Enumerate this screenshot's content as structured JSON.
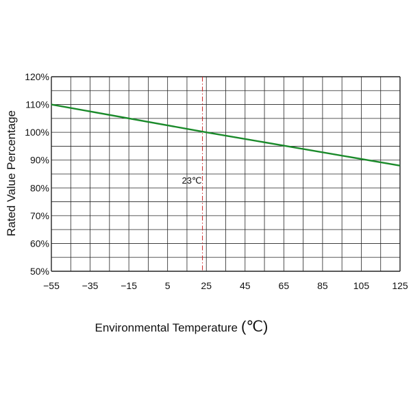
{
  "chart_data": {
    "type": "line",
    "xlabel": "Environmental Temperature",
    "xlabel_unit": "(℃)",
    "ylabel": "Rated Value Percentage",
    "xlim": [
      -55,
      125
    ],
    "ylim": [
      50,
      120
    ],
    "x_ticks": [
      -55,
      -35,
      -15,
      5,
      25,
      45,
      65,
      85,
      105,
      125
    ],
    "x_tick_labels": [
      "−55",
      "−35",
      "−15",
      "5",
      "25",
      "45",
      "65",
      "85",
      "105",
      "125"
    ],
    "y_ticks": [
      50,
      60,
      70,
      80,
      90,
      100,
      110,
      120
    ],
    "y_tick_labels": [
      "50%",
      "60%",
      "70%",
      "80%",
      "90%",
      "100%",
      "110%",
      "120%"
    ],
    "x_minor_step": 10,
    "y_minor_step": 5,
    "grid": true,
    "series": [
      {
        "x": [
          -55,
          25,
          125
        ],
        "y": [
          110,
          100,
          88
        ]
      }
    ],
    "reference_line": {
      "x": 23,
      "label": "23℃"
    },
    "colors": {
      "series": "#1a8a2a",
      "reference_line": "#cc2222",
      "grid": "#222222"
    }
  }
}
